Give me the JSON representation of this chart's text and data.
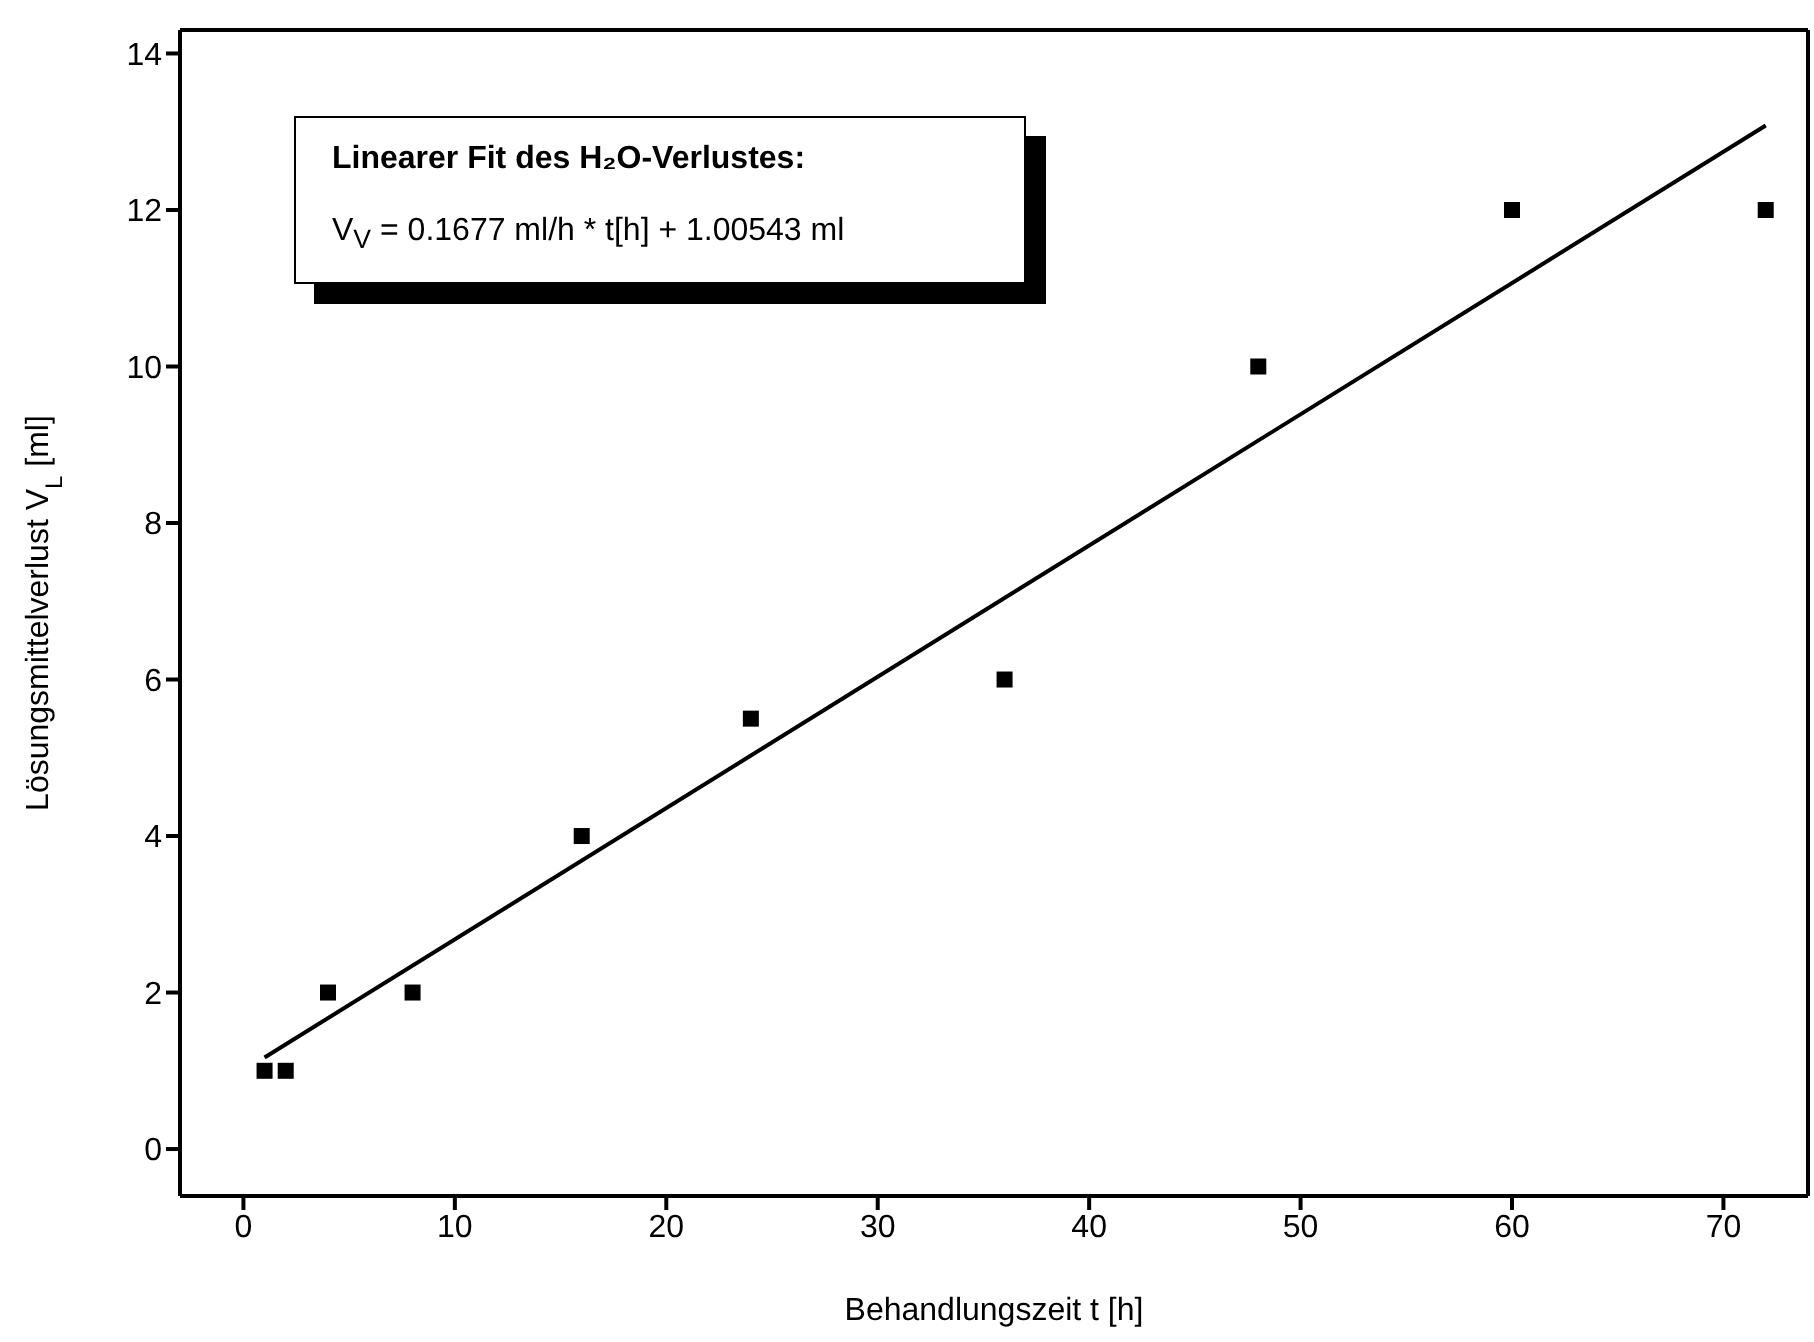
{
  "chart_data": {
    "type": "scatter",
    "xlabel": "Behandlungszeit  t [h]",
    "ylabel": "Lösungsmittelverlust  V$_{L}$ [ml]",
    "annotations": [
      "Linearer Fit des H₂O-Verlustes:",
      "V$_{V}$ = 0.1677 ml/h * t[h] + 1.00543 ml"
    ],
    "series": [
      {
        "marker": "square",
        "color": "#000000",
        "x": [
          1,
          2,
          4,
          8,
          16,
          24,
          36,
          48,
          60,
          72
        ],
        "values": [
          1,
          1,
          2,
          2,
          4,
          5.5,
          6,
          10,
          12,
          12
        ]
      },
      {
        "type": "line",
        "marker": "none",
        "color": "#000000",
        "x": [
          1,
          72
        ],
        "values": [
          1.17,
          13.08
        ]
      }
    ],
    "xlim": [
      -3,
      74
    ],
    "xticks": [
      0,
      10,
      20,
      30,
      40,
      50,
      60,
      70
    ],
    "ylim": [
      -0.6,
      14.3
    ],
    "yticks": [
      0,
      2,
      4,
      6,
      8,
      10,
      12,
      14
    ]
  }
}
